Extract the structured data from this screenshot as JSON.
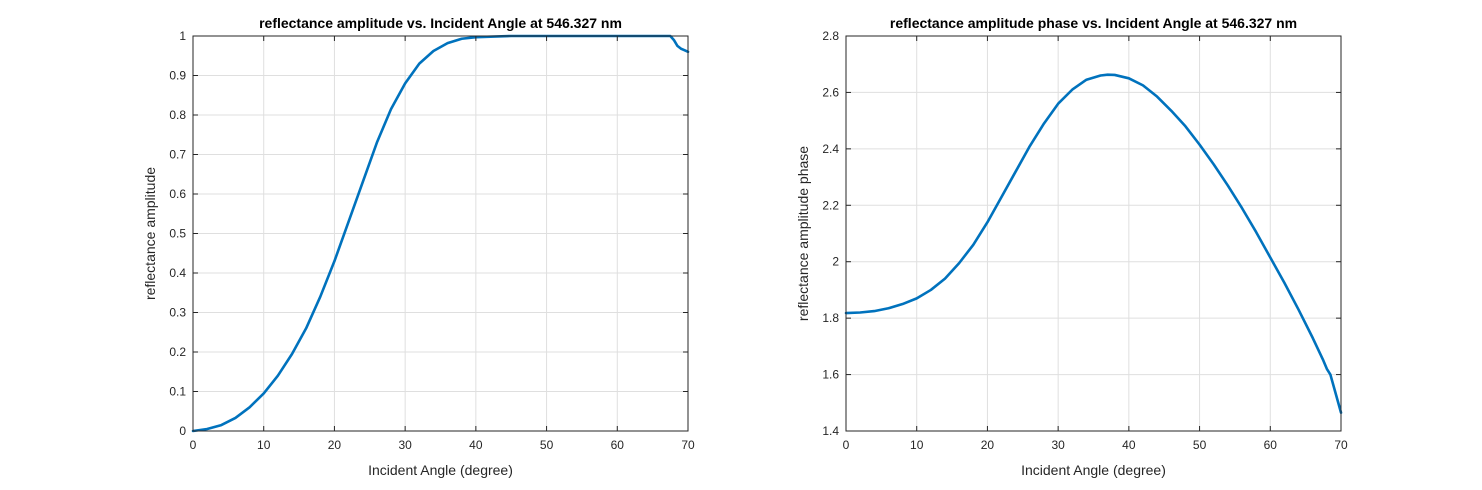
{
  "chart_data": [
    {
      "type": "line",
      "title": "reflectance amplitude vs. Incident Angle at 546.327 nm",
      "xlabel": "Incident Angle (degree)",
      "ylabel": "reflectance amplitude",
      "xlim": [
        0,
        70
      ],
      "ylim": [
        0,
        1
      ],
      "xticks": [
        0,
        10,
        20,
        30,
        40,
        50,
        60,
        70
      ],
      "yticks": [
        0,
        0.1,
        0.2,
        0.3,
        0.4,
        0.5,
        0.6,
        0.7,
        0.8,
        0.9,
        1
      ],
      "grid": true,
      "legend": "none",
      "series_color": "#0072BD",
      "series": [
        {
          "x": [
            0,
            2,
            4,
            6,
            8,
            10,
            12,
            14,
            16,
            18,
            20,
            22,
            24,
            26,
            28,
            30,
            32,
            34,
            36,
            38,
            40,
            45,
            50,
            55,
            60,
            65,
            67.5,
            68,
            68.5,
            69,
            69.5,
            70
          ],
          "y": [
            0.0,
            0.005,
            0.015,
            0.033,
            0.06,
            0.095,
            0.14,
            0.195,
            0.26,
            0.34,
            0.43,
            0.53,
            0.63,
            0.73,
            0.815,
            0.88,
            0.93,
            0.962,
            0.982,
            0.993,
            0.997,
            1.0,
            1.0,
            1.0,
            1.0,
            1.0,
            1.0,
            0.99,
            0.975,
            0.968,
            0.964,
            0.96
          ]
        }
      ]
    },
    {
      "type": "line",
      "title": "reflectance amplitude phase vs. Incident Angle at 546.327 nm",
      "xlabel": "Incident Angle (degree)",
      "ylabel": "reflectance amplitude phase",
      "xlim": [
        0,
        70
      ],
      "ylim": [
        1.4,
        2.8
      ],
      "xticks": [
        0,
        10,
        20,
        30,
        40,
        50,
        60,
        70
      ],
      "yticks": [
        1.4,
        1.6,
        1.8,
        2,
        2.2,
        2.4,
        2.6,
        2.8
      ],
      "grid": true,
      "legend": "none",
      "series_color": "#0072BD",
      "series": [
        {
          "x": [
            0,
            2,
            4,
            6,
            8,
            10,
            12,
            14,
            16,
            18,
            20,
            22,
            24,
            26,
            28,
            30,
            32,
            34,
            36,
            37,
            38,
            40,
            42,
            44,
            46,
            48,
            50,
            52,
            54,
            56,
            58,
            60,
            62,
            64,
            66,
            67.5,
            68,
            68.5,
            69,
            70
          ],
          "y": [
            1.818,
            1.82,
            1.825,
            1.835,
            1.85,
            1.87,
            1.9,
            1.94,
            1.995,
            2.06,
            2.14,
            2.23,
            2.32,
            2.41,
            2.49,
            2.56,
            2.61,
            2.645,
            2.66,
            2.663,
            2.662,
            2.65,
            2.625,
            2.585,
            2.535,
            2.48,
            2.415,
            2.345,
            2.27,
            2.19,
            2.105,
            2.015,
            1.925,
            1.83,
            1.73,
            1.65,
            1.62,
            1.6,
            1.555,
            1.465
          ]
        }
      ]
    }
  ]
}
